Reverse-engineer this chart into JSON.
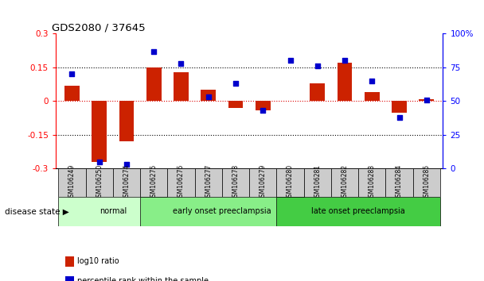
{
  "title": "GDS2080 / 37645",
  "samples": [
    "GSM106249",
    "GSM106250",
    "GSM106274",
    "GSM106275",
    "GSM106276",
    "GSM106277",
    "GSM106278",
    "GSM106279",
    "GSM106280",
    "GSM106281",
    "GSM106282",
    "GSM106283",
    "GSM106284",
    "GSM106285"
  ],
  "log10_ratio": [
    0.07,
    -0.27,
    -0.18,
    0.15,
    0.13,
    0.05,
    -0.03,
    -0.04,
    0.0,
    0.08,
    0.17,
    0.04,
    -0.05,
    0.01
  ],
  "percentile_rank": [
    70,
    5,
    3,
    87,
    78,
    53,
    63,
    43,
    80,
    76,
    80,
    65,
    38,
    51
  ],
  "groups": [
    {
      "label": "normal",
      "start": 0,
      "end": 3,
      "color": "#ccffcc"
    },
    {
      "label": "early onset preeclampsia",
      "start": 3,
      "end": 8,
      "color": "#88ee88"
    },
    {
      "label": "late onset preeclampsia",
      "start": 8,
      "end": 13,
      "color": "#44cc44"
    }
  ],
  "bar_color_red": "#cc2200",
  "dot_color_blue": "#0000cc",
  "ylim_left": [
    -0.3,
    0.3
  ],
  "ylim_right": [
    0,
    100
  ],
  "yticks_left": [
    -0.3,
    -0.15,
    0.0,
    0.15,
    0.3
  ],
  "yticks_right": [
    0,
    25,
    50,
    75,
    100
  ],
  "ytick_labels_left": [
    "-0.3",
    "-0.15",
    "0",
    "0.15",
    "0.3"
  ],
  "ytick_labels_right": [
    "0",
    "25",
    "50",
    "75",
    "100%"
  ],
  "hlines": [
    0.15,
    -0.15
  ],
  "legend_items": [
    {
      "label": "log10 ratio",
      "color": "#cc2200"
    },
    {
      "label": "percentile rank within the sample",
      "color": "#0000cc"
    }
  ],
  "disease_state_label": "disease state",
  "bar_width": 0.55
}
